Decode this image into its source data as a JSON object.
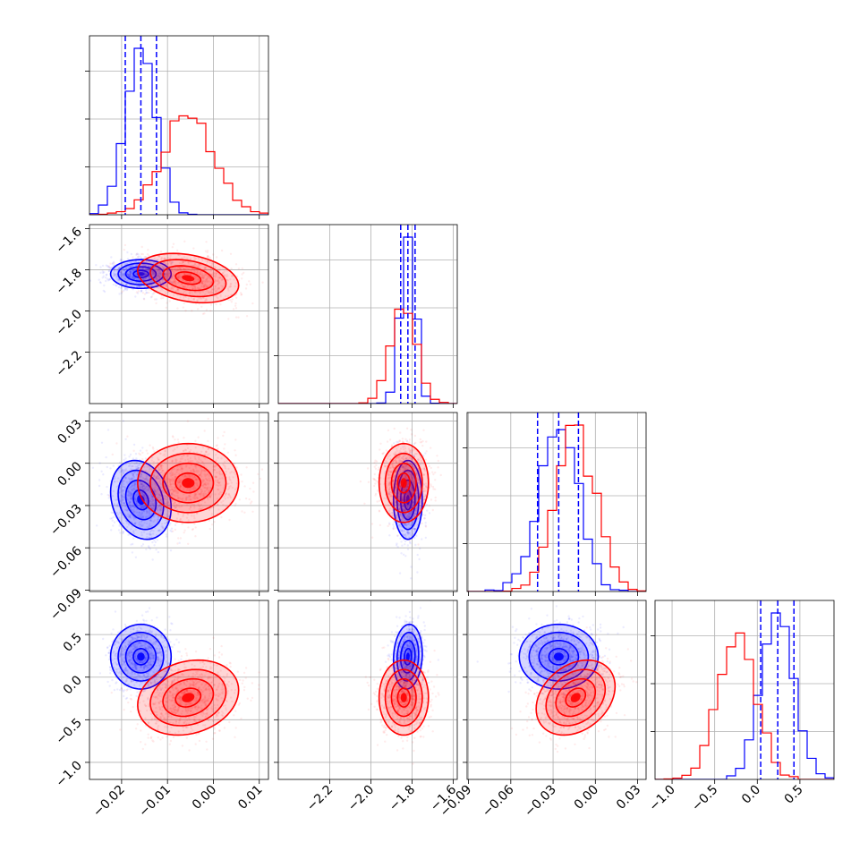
{
  "chart_data": {
    "type": "corner",
    "parameters": [
      {
        "range": [
          -0.027,
          0.012
        ],
        "ticks": [
          -0.02,
          -0.01,
          0.0,
          0.01
        ],
        "tick_labels": [
          "−0.02",
          "−0.01",
          "0.00",
          "0.01"
        ]
      },
      {
        "range": [
          -2.45,
          -1.58
        ],
        "ticks": [
          -2.2,
          -2.0,
          -1.8,
          -1.6
        ],
        "tick_labels": [
          "−2.2",
          "−2.0",
          "−1.8",
          "−1.6"
        ]
      },
      {
        "range": [
          -0.091,
          0.036
        ],
        "ticks": [
          -0.09,
          -0.06,
          -0.03,
          0.0,
          0.03
        ],
        "tick_labels": [
          "−0.09",
          "−0.06",
          "−0.03",
          "0.00",
          "0.03"
        ]
      },
      {
        "range": [
          -1.2,
          0.9
        ],
        "ticks": [
          -1.0,
          -0.5,
          0.0,
          0.5
        ],
        "tick_labels": [
          "−1.0",
          "−0.5",
          "0.0",
          "0.5"
        ]
      }
    ],
    "grid": true,
    "series": [
      {
        "color": "#0000ff",
        "mean": [
          -0.0158,
          -1.82,
          -0.026,
          0.24
        ],
        "std": [
          0.0033,
          0.035,
          0.014,
          0.19
        ],
        "corr": [
          [
            1,
            0,
            -0.2,
            0
          ],
          [
            0,
            1,
            0,
            0.1
          ],
          [
            -0.2,
            0,
            1,
            0
          ],
          [
            0,
            0.1,
            0,
            1
          ]
        ],
        "quantile_lines": [
          [
            -0.0192,
            -0.0158,
            -0.0124
          ],
          [
            -1.855,
            -1.82,
            -1.785
          ],
          [
            -0.041,
            -0.026,
            -0.012
          ],
          [
            0.04,
            0.24,
            0.43
          ]
        ]
      },
      {
        "color": "#ff0000",
        "mean": [
          -0.0055,
          -1.84,
          -0.014,
          -0.24
        ],
        "std": [
          0.0055,
          0.06,
          0.014,
          0.22
        ],
        "corr": [
          [
            1,
            -0.3,
            0,
            0.2
          ],
          [
            -0.3,
            1,
            0,
            0
          ],
          [
            0,
            0,
            1,
            0.3
          ],
          [
            0.2,
            0,
            0.3,
            1
          ]
        ],
        "quantile_lines": null
      }
    ]
  }
}
